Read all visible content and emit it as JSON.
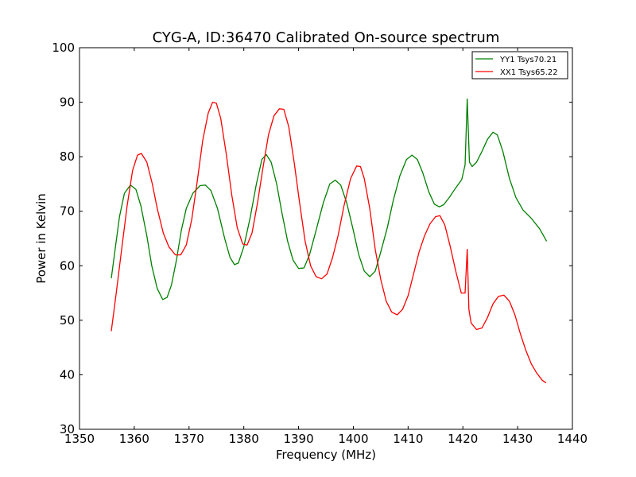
{
  "chart_data": {
    "type": "line",
    "title": "CYG-A, ID:36470 Calibrated On-source spectrum",
    "xlabel": "Frequency (MHz)",
    "ylabel": "Power in Kelvin",
    "xlim": [
      1350,
      1440
    ],
    "ylim": [
      30,
      100
    ],
    "xticks": [
      1350,
      1360,
      1370,
      1380,
      1390,
      1400,
      1410,
      1420,
      1430,
      1440
    ],
    "yticks": [
      30,
      40,
      50,
      60,
      70,
      80,
      90,
      100
    ],
    "grid": false,
    "legend_position": "top-right",
    "series": [
      {
        "name": "YY1 Tsys70.21",
        "color": "#008000",
        "points": [
          [
            1355.8,
            57.7
          ],
          [
            1356.5,
            63
          ],
          [
            1357.3,
            69
          ],
          [
            1358.2,
            73.3
          ],
          [
            1359.3,
            74.8
          ],
          [
            1360.3,
            74.0
          ],
          [
            1361.2,
            71.0
          ],
          [
            1362.3,
            65.5
          ],
          [
            1363.2,
            60.0
          ],
          [
            1364.2,
            55.8
          ],
          [
            1365.2,
            53.8
          ],
          [
            1366.0,
            54.2
          ],
          [
            1366.8,
            56.5
          ],
          [
            1367.7,
            61.0
          ],
          [
            1368.6,
            66.5
          ],
          [
            1369.5,
            70.5
          ],
          [
            1370.7,
            73.3
          ],
          [
            1372.0,
            74.7
          ],
          [
            1373.0,
            74.8
          ],
          [
            1374.0,
            73.8
          ],
          [
            1375.2,
            70.5
          ],
          [
            1376.5,
            65.0
          ],
          [
            1377.5,
            61.5
          ],
          [
            1378.3,
            60.2
          ],
          [
            1379.0,
            60.5
          ],
          [
            1380.0,
            63.5
          ],
          [
            1381.2,
            69.0
          ],
          [
            1382.3,
            75.0
          ],
          [
            1383.3,
            79.5
          ],
          [
            1384.1,
            80.4
          ],
          [
            1385.0,
            79.0
          ],
          [
            1386.0,
            75.0
          ],
          [
            1387.0,
            69.5
          ],
          [
            1388.0,
            64.5
          ],
          [
            1389.0,
            61.0
          ],
          [
            1390.0,
            59.5
          ],
          [
            1391.0,
            59.6
          ],
          [
            1392.0,
            62.0
          ],
          [
            1393.2,
            66.5
          ],
          [
            1394.5,
            71.5
          ],
          [
            1395.7,
            75.0
          ],
          [
            1396.7,
            75.7
          ],
          [
            1397.7,
            74.8
          ],
          [
            1398.8,
            71.5
          ],
          [
            1400.0,
            66.5
          ],
          [
            1401.0,
            62.0
          ],
          [
            1402.0,
            59.0
          ],
          [
            1403.0,
            58.0
          ],
          [
            1404.0,
            59.0
          ],
          [
            1405.0,
            62.5
          ],
          [
            1406.2,
            67.0
          ],
          [
            1407.3,
            72.0
          ],
          [
            1408.5,
            76.5
          ],
          [
            1409.7,
            79.5
          ],
          [
            1410.7,
            80.3
          ],
          [
            1411.7,
            79.5
          ],
          [
            1412.7,
            77.0
          ],
          [
            1413.8,
            73.5
          ],
          [
            1414.8,
            71.3
          ],
          [
            1415.7,
            70.8
          ],
          [
            1416.5,
            71.2
          ],
          [
            1417.5,
            72.5
          ],
          [
            1418.5,
            74.0
          ],
          [
            1419.8,
            75.8
          ],
          [
            1420.4,
            78.5
          ],
          [
            1420.8,
            90.6
          ],
          [
            1421.2,
            79.0
          ],
          [
            1421.7,
            78.2
          ],
          [
            1422.5,
            79.0
          ],
          [
            1423.5,
            81.0
          ],
          [
            1424.5,
            83.2
          ],
          [
            1425.5,
            84.5
          ],
          [
            1426.3,
            84.0
          ],
          [
            1427.3,
            81.0
          ],
          [
            1428.5,
            76.0
          ],
          [
            1429.7,
            72.5
          ],
          [
            1431.0,
            70.2
          ],
          [
            1432.5,
            68.7
          ],
          [
            1434.0,
            66.8
          ],
          [
            1435.3,
            64.5
          ]
        ]
      },
      {
        "name": "XX1 Tsys65.22",
        "color": "#ff0000",
        "points": [
          [
            1355.8,
            48.0
          ],
          [
            1356.7,
            55.0
          ],
          [
            1357.7,
            63.0
          ],
          [
            1358.7,
            71.0
          ],
          [
            1359.7,
            77.5
          ],
          [
            1360.6,
            80.3
          ],
          [
            1361.3,
            80.6
          ],
          [
            1362.3,
            79.0
          ],
          [
            1363.3,
            75.0
          ],
          [
            1364.2,
            70.5
          ],
          [
            1365.3,
            66.0
          ],
          [
            1366.3,
            63.5
          ],
          [
            1367.5,
            62.0
          ],
          [
            1368.5,
            62.0
          ],
          [
            1369.5,
            63.8
          ],
          [
            1370.5,
            68.5
          ],
          [
            1371.5,
            75.5
          ],
          [
            1372.5,
            83.0
          ],
          [
            1373.5,
            88.0
          ],
          [
            1374.3,
            90.0
          ],
          [
            1375.0,
            89.8
          ],
          [
            1375.8,
            87.0
          ],
          [
            1376.8,
            80.5
          ],
          [
            1377.8,
            73.0
          ],
          [
            1378.8,
            67.0
          ],
          [
            1379.8,
            64.0
          ],
          [
            1380.6,
            63.8
          ],
          [
            1381.5,
            66.0
          ],
          [
            1382.5,
            71.5
          ],
          [
            1383.5,
            78.0
          ],
          [
            1384.5,
            84.0
          ],
          [
            1385.5,
            87.5
          ],
          [
            1386.5,
            88.8
          ],
          [
            1387.3,
            88.7
          ],
          [
            1388.2,
            85.5
          ],
          [
            1389.2,
            79.0
          ],
          [
            1390.2,
            71.5
          ],
          [
            1391.2,
            64.5
          ],
          [
            1392.2,
            60.0
          ],
          [
            1393.2,
            58.0
          ],
          [
            1394.2,
            57.6
          ],
          [
            1395.2,
            58.5
          ],
          [
            1396.2,
            61.5
          ],
          [
            1397.2,
            65.5
          ],
          [
            1398.3,
            71.0
          ],
          [
            1399.5,
            76.0
          ],
          [
            1400.6,
            78.3
          ],
          [
            1401.3,
            78.2
          ],
          [
            1402.0,
            76.0
          ],
          [
            1403.0,
            70.5
          ],
          [
            1404.0,
            63.0
          ],
          [
            1405.0,
            57.5
          ],
          [
            1406.0,
            53.5
          ],
          [
            1407.0,
            51.5
          ],
          [
            1408.0,
            51.0
          ],
          [
            1409.0,
            52.0
          ],
          [
            1410.0,
            54.5
          ],
          [
            1411.0,
            58.5
          ],
          [
            1412.0,
            62.5
          ],
          [
            1413.0,
            65.5
          ],
          [
            1414.0,
            67.7
          ],
          [
            1415.0,
            69.0
          ],
          [
            1415.8,
            69.2
          ],
          [
            1416.7,
            67.5
          ],
          [
            1417.7,
            63.5
          ],
          [
            1418.7,
            59.0
          ],
          [
            1419.7,
            55.0
          ],
          [
            1420.4,
            55.0
          ],
          [
            1420.8,
            63.0
          ],
          [
            1421.1,
            52.0
          ],
          [
            1421.5,
            49.5
          ],
          [
            1422.5,
            48.3
          ],
          [
            1423.5,
            48.6
          ],
          [
            1424.5,
            50.5
          ],
          [
            1425.5,
            53.0
          ],
          [
            1426.5,
            54.4
          ],
          [
            1427.5,
            54.6
          ],
          [
            1428.5,
            53.5
          ],
          [
            1429.5,
            51.0
          ],
          [
            1430.5,
            47.5
          ],
          [
            1431.5,
            44.5
          ],
          [
            1432.5,
            42.0
          ],
          [
            1433.5,
            40.3
          ],
          [
            1434.5,
            39.0
          ],
          [
            1435.2,
            38.5
          ]
        ]
      }
    ]
  }
}
